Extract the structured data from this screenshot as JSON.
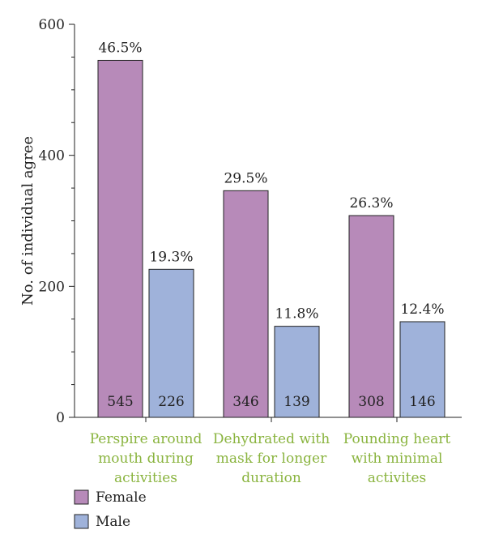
{
  "chart_data": {
    "type": "bar",
    "categories": [
      [
        "Perspire around",
        "mouth during",
        "activities"
      ],
      [
        "Dehydrated with",
        "mask for longer",
        "duration"
      ],
      [
        "Pounding heart",
        "with minimal",
        "activites"
      ]
    ],
    "series": [
      {
        "name": "Female",
        "values": [
          545,
          346,
          308
        ],
        "percent_labels": [
          "46.5%",
          "29.5%",
          "26.3%"
        ],
        "color": "#b78ab9"
      },
      {
        "name": "Male",
        "values": [
          226,
          139,
          146
        ],
        "percent_labels": [
          "19.3%",
          "11.8%",
          "12.4%"
        ],
        "color": "#9fb2da"
      }
    ],
    "title": "",
    "xlabel": "",
    "ylabel": "No. of individual agree",
    "ylim": [
      0,
      600
    ],
    "yticks": [
      0,
      200,
      400,
      600
    ],
    "category_label_color": "#8ab43f",
    "legend_position": "bottom-left",
    "grid": false
  }
}
